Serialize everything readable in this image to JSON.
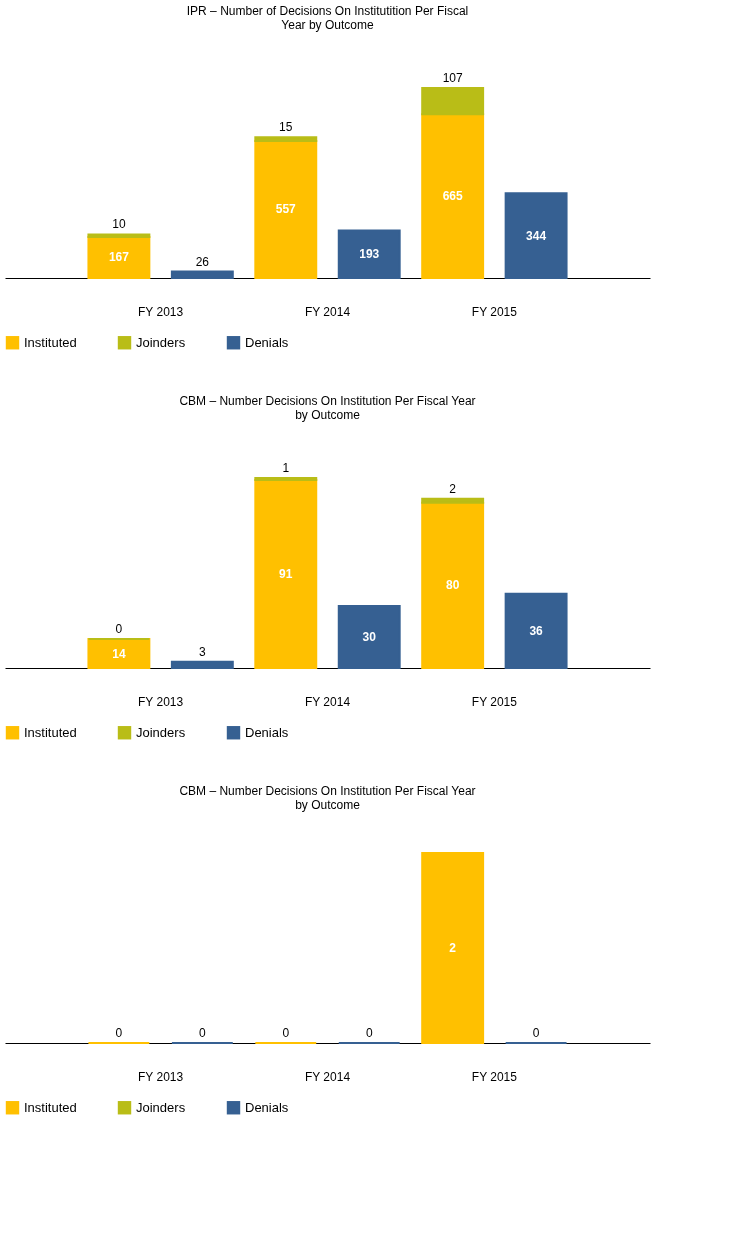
{
  "chart_data": [
    {
      "type": "bar",
      "title": "IPR – Number of Decisions On Institutition Per Fiscal Year  by Outcome",
      "categories": [
        "FY 2013",
        null,
        "FY 2014",
        null,
        "FY 2015",
        null
      ],
      "stacked": true,
      "data_labels": true,
      "legend": "bottom",
      "grid": false,
      "tick_labels": "x",
      "series": [
        {
          "name": "Instituted",
          "color": "#ffc000",
          "values": [
            167,
            null,
            557,
            null,
            665,
            null
          ]
        },
        {
          "name": "Joinders",
          "color": "#b9bd17",
          "values": [
            10,
            null,
            15,
            null,
            107,
            null
          ]
        },
        {
          "name": "Denials",
          "color": "#366092",
          "values": [
            null,
            26,
            null,
            193,
            null,
            344
          ]
        }
      ]
    },
    {
      "type": "bar",
      "title": "CBM – Number Decisions On Institution Per Fiscal Year by Outcome",
      "categories": [
        "FY 2013",
        null,
        "FY 2014",
        null,
        "FY 2015",
        null
      ],
      "stacked": true,
      "data_labels": true,
      "legend": "bottom",
      "grid": false,
      "tick_labels": "x",
      "series": [
        {
          "name": "Instituted",
          "color": "#ffc000",
          "values": [
            14,
            null,
            91,
            null,
            80,
            null
          ]
        },
        {
          "name": "Joinders",
          "color": "#b9bd17",
          "values": [
            0,
            null,
            1,
            null,
            2,
            null
          ]
        },
        {
          "name": "Denials",
          "color": "#366092",
          "values": [
            null,
            3,
            null,
            30,
            null,
            36
          ]
        }
      ]
    },
    {
      "type": "bar",
      "title": "CBM – Number Decisions On Institution Per Fiscal Year by Outcome",
      "categories": [
        "FY 2013",
        null,
        "FY 2014",
        null,
        "FY 2015",
        null
      ],
      "stacked": true,
      "data_labels": true,
      "legend": "bottom",
      "grid": false,
      "tick_labels": "x",
      "series": [
        {
          "name": "Instituted",
          "color": "#ffc000",
          "values": [
            0,
            null,
            0,
            null,
            2,
            null
          ]
        },
        {
          "name": "Joinders",
          "color": "#b9bd17",
          "values": [
            null,
            null,
            null,
            null,
            null,
            null
          ]
        },
        {
          "name": "Denials",
          "color": "#366092",
          "values": [
            null,
            0,
            null,
            0,
            null,
            0
          ]
        }
      ]
    }
  ]
}
